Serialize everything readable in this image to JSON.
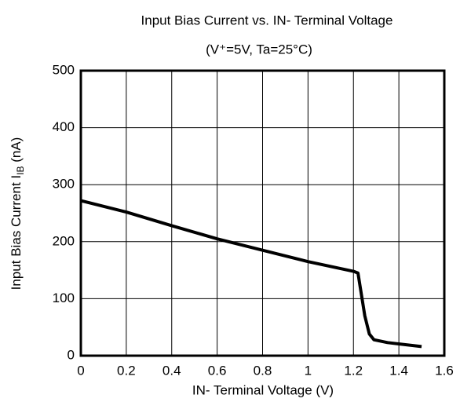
{
  "chart_data": {
    "type": "line",
    "title": "Input Bias Current vs. IN- Terminal Voltage",
    "subtitle": "(V⁺=5V, Ta=25°C)",
    "xlabel": "IN- Terminal Voltage   (V)",
    "ylabel": {
      "text": "Input Bias Current  I",
      "sub": "IB",
      "unit": " (nA)"
    },
    "x": [
      0,
      0.1,
      0.2,
      0.4,
      0.6,
      0.8,
      1.0,
      1.2,
      1.22,
      1.23,
      1.25,
      1.27,
      1.29,
      1.35,
      1.5
    ],
    "series": [
      {
        "color": "#000000",
        "values": [
          272,
          262,
          252,
          228,
          205,
          185,
          165,
          148,
          145,
          120,
          70,
          38,
          28,
          23,
          16
        ]
      }
    ],
    "xlim": [
      0,
      1.6
    ],
    "xticks": [
      0,
      0.2,
      0.4,
      0.6,
      0.8,
      1,
      1.2,
      1.4,
      1.6
    ],
    "ylim": [
      0,
      500
    ],
    "yticks": [
      0,
      100,
      200,
      300,
      400,
      500
    ],
    "grid": true
  }
}
